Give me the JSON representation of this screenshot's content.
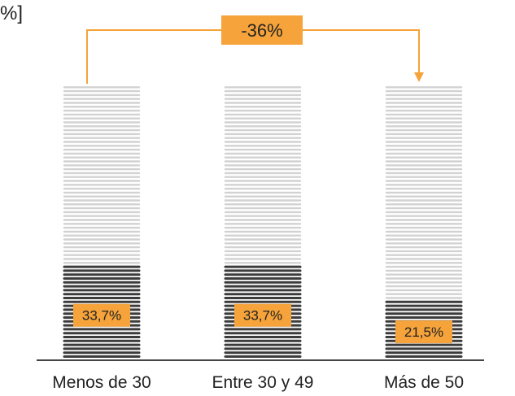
{
  "chart_data": {
    "type": "bar",
    "unit_fragment": "%]",
    "categories": [
      "Menos de 30",
      "Entre 30 y 49",
      "Más de 50"
    ],
    "values": [
      33.7,
      33.7,
      21.5
    ],
    "value_labels": [
      "33,7%",
      "33,7%",
      "21,5%"
    ],
    "total": 100,
    "ylim": [
      0,
      100
    ],
    "annotation": {
      "text": "-36%",
      "from_category": "Menos de 30",
      "to_category": "Más de 50"
    },
    "colors": {
      "filled": "#3c3c3c",
      "unfilled": "#d2d2d2",
      "label_box": "#f5a33a",
      "arrow": "#f5a33a",
      "text": "#222222",
      "axis": "#444444"
    }
  }
}
